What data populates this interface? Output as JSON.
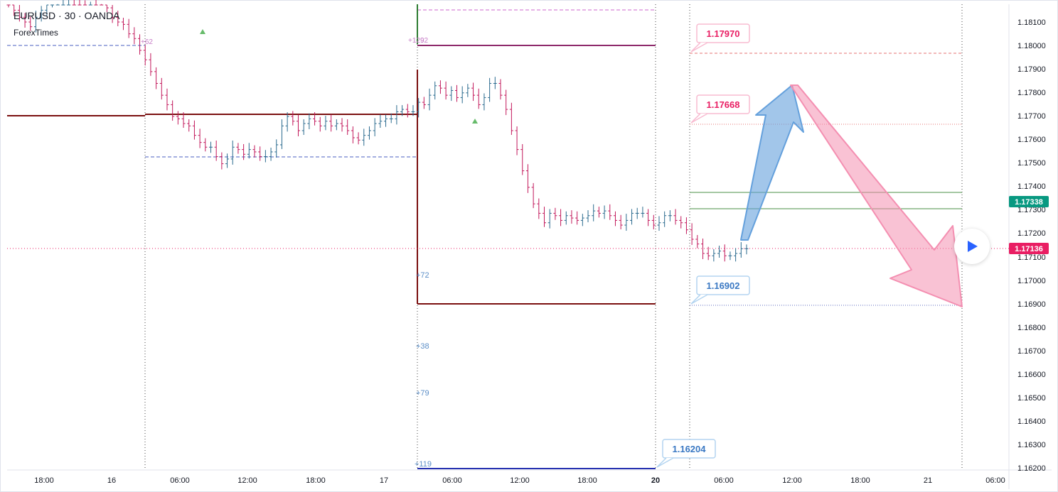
{
  "header": {
    "symbol": "EURUSD",
    "interval": "30",
    "broker": "OANDA",
    "source": "ForexTimes"
  },
  "colors": {
    "bull": "#2a6a8e",
    "bear": "#c2185b",
    "pivot": "#7b1010",
    "green_line": "#4a8f44",
    "pink_arrow": "#f48fb1",
    "blue_arrow": "#64a0dc",
    "last_price_bg": "#e91e63",
    "prev_close_bg": "#089981",
    "dashed_blue": "#4a5fc1",
    "dashed_magenta": "#cc66cc",
    "dotted_pink": "#e57373"
  },
  "chart_data": {
    "type": "candlestick",
    "title": "",
    "xlabel": "",
    "ylabel": "",
    "ylim": [
      1.162,
      1.1825
    ],
    "grid": false,
    "x_ticks": [
      "18:00",
      "16",
      "06:00",
      "12:00",
      "18:00",
      "17",
      "06:00",
      "12:00",
      "18:00",
      "20",
      "06:00",
      "12:00",
      "18:00",
      "21",
      "06:00"
    ],
    "y_ticks": [
      "1.18100",
      "1.18000",
      "1.17900",
      "1.17800",
      "1.17700",
      "1.17600",
      "1.17500",
      "1.17400",
      "1.17300",
      "1.17200",
      "1.17100",
      "1.17000",
      "1.16900",
      "1.16800",
      "1.16700",
      "1.16600",
      "1.16500",
      "1.16400",
      "1.16300",
      "1.16200"
    ],
    "price_labels": [
      {
        "text": "1.17970",
        "value": 1.1797,
        "type": "target",
        "color": "#e91e63"
      },
      {
        "text": "1.17668",
        "value": 1.17668,
        "type": "target",
        "color": "#e91e63"
      },
      {
        "text": "1.16902",
        "value": 1.16902,
        "type": "target",
        "color": "#3a78c3"
      },
      {
        "text": "1.16204",
        "value": 1.16204,
        "type": "target",
        "color": "#3a78c3"
      }
    ],
    "current_price": "1.17136",
    "previous_close": "1.17338",
    "green_levels": [
      1.17372,
      1.17302
    ],
    "pivot_levels": [
      1.17705,
      1.17003,
      1.16902
    ],
    "annotations": [
      "+62",
      "+129",
      "92",
      "+72",
      "+38",
      "+79",
      "+119"
    ],
    "close_series": [
      1.1818,
      1.1815,
      1.1812,
      1.181,
      1.1808,
      1.1812,
      1.1815,
      1.1818,
      1.182,
      1.1822,
      1.1823,
      1.1825,
      1.1824,
      1.1822,
      1.1821,
      1.1824,
      1.1823,
      1.182,
      1.1816,
      1.1812,
      1.181,
      1.1809,
      1.1805,
      1.1803,
      1.1798,
      1.1794,
      1.1789,
      1.1784,
      1.1779,
      1.1775,
      1.177,
      1.1769,
      1.1767,
      1.1766,
      1.1762,
      1.1759,
      1.1757,
      1.1757,
      1.1753,
      1.175,
      1.1752,
      1.1757,
      1.1756,
      1.1754,
      1.1756,
      1.1755,
      1.1753,
      1.1753,
      1.1755,
      1.1758,
      1.1766,
      1.177,
      1.1768,
      1.1764,
      1.1767,
      1.1769,
      1.1768,
      1.1766,
      1.1768,
      1.1766,
      1.1767,
      1.1766,
      1.1764,
      1.1761,
      1.176,
      1.1762,
      1.1764,
      1.1767,
      1.1768,
      1.1769,
      1.1769,
      1.1772,
      1.1773,
      1.1772,
      1.1772,
      1.1776,
      1.1775,
      1.1779,
      1.1783,
      1.1782,
      1.1779,
      1.1781,
      1.1778,
      1.178,
      1.1782,
      1.1779,
      1.1775,
      1.1778,
      1.1784,
      1.1784,
      1.1779,
      1.1773,
      1.1764,
      1.1756,
      1.1747,
      1.174,
      1.1733,
      1.1729,
      1.1725,
      1.1729,
      1.1728,
      1.1726,
      1.1728,
      1.1727,
      1.1726,
      1.1727,
      1.1728,
      1.173,
      1.1729,
      1.173,
      1.1728,
      1.1726,
      1.1724,
      1.1726,
      1.1729,
      1.1729,
      1.1729,
      1.1726,
      1.1724,
      1.1725,
      1.1728,
      1.1728,
      1.1726,
      1.1725,
      1.1722,
      1.1718,
      1.1716,
      1.1712,
      1.1711,
      1.1712,
      1.1713,
      1.1711,
      1.1711,
      1.1712,
      1.1714,
      1.1714
    ]
  }
}
